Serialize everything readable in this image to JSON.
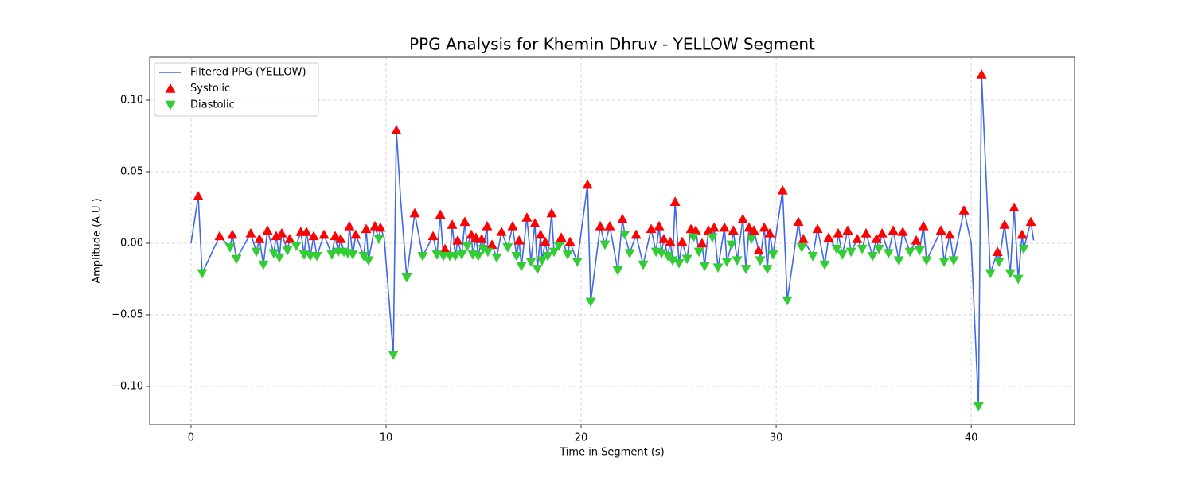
{
  "chart_data": {
    "type": "line",
    "title": "PPG Analysis for Khemin Dhruv - YELLOW Segment",
    "xlabel": "Time in Segment (s)",
    "ylabel": "Amplitude (A.U.)",
    "xlim": [
      -2.12,
      45.3
    ],
    "ylim": [
      -0.1267,
      0.13
    ],
    "xticks": [
      0,
      10,
      20,
      30,
      40
    ],
    "yticks": [
      {
        "value": -0.1,
        "label": "−0.10"
      },
      {
        "value": -0.05,
        "label": "−0.05"
      },
      {
        "value": 0,
        "label": "0.00"
      },
      {
        "value": 0.05,
        "label": "0.05"
      },
      {
        "value": 0.1,
        "label": "0.10"
      }
    ],
    "grid": true,
    "legend": "upper left",
    "series": [
      {
        "name": "Filtered PPG (YELLOW)",
        "color": "#4169e1",
        "marker": "none",
        "x": [
          0,
          0.37,
          0.57,
          1.47,
          2.0,
          2.12,
          2.33,
          3.06,
          3.35,
          3.51,
          3.71,
          3.92,
          4.24,
          4.37,
          4.53,
          4.65,
          4.94,
          5.06,
          5.39,
          5.63,
          5.8,
          5.92,
          6.12,
          6.29,
          6.45,
          6.82,
          7.22,
          7.39,
          7.55,
          7.67,
          7.84,
          8.04,
          8.12,
          8.29,
          8.45,
          8.86,
          8.98,
          9.1,
          9.43,
          9.63,
          9.71,
          9.9,
          10.1,
          10.37,
          10.53,
          10.75,
          11.06,
          11.47,
          11.88,
          12.41,
          12.61,
          12.78,
          12.94,
          13.02,
          13.27,
          13.39,
          13.55,
          13.67,
          13.88,
          14.04,
          14.16,
          14.37,
          14.45,
          14.61,
          14.73,
          14.9,
          14.98,
          15.18,
          15.22,
          15.43,
          15.67,
          15.92,
          16.24,
          16.49,
          16.69,
          16.82,
          16.94,
          17.22,
          17.43,
          17.63,
          17.76,
          17.92,
          18.0,
          18.16,
          18.29,
          18.49,
          18.61,
          18.86,
          18.98,
          19.31,
          19.43,
          19.8,
          20.33,
          20.49,
          20.98,
          21.22,
          21.47,
          21.88,
          22.12,
          22.24,
          22.49,
          22.82,
          23.18,
          23.59,
          23.84,
          24.0,
          24.12,
          24.24,
          24.45,
          24.57,
          24.69,
          24.82,
          25.02,
          25.18,
          25.43,
          25.63,
          25.76,
          25.88,
          26.04,
          26.2,
          26.33,
          26.53,
          26.73,
          26.82,
          27.02,
          27.35,
          27.47,
          27.71,
          27.8,
          28.0,
          28.29,
          28.45,
          28.61,
          28.73,
          28.86,
          29.1,
          29.18,
          29.39,
          29.55,
          29.67,
          29.84,
          30.33,
          30.57,
          31.14,
          31.31,
          31.39,
          31.88,
          32.12,
          32.49,
          32.69,
          33.1,
          33.18,
          33.39,
          33.67,
          33.84,
          34.16,
          34.41,
          34.61,
          34.94,
          35.14,
          35.27,
          35.43,
          35.76,
          36.0,
          36.29,
          36.49,
          36.86,
          37.18,
          37.35,
          37.55,
          37.71,
          38.45,
          38.61,
          38.9,
          39.1,
          39.63,
          40.0,
          40.37,
          40.53,
          40.98,
          41.35,
          41.43,
          41.71,
          42.0,
          42.2,
          42.41,
          42.61,
          42.69,
          43.06,
          43.2
        ],
        "values": [
          0,
          0.033,
          -0.021,
          0.005,
          -0.003,
          0.006,
          -0.011,
          0.007,
          -0.006,
          0.003,
          -0.015,
          0.009,
          -0.007,
          0.005,
          -0.01,
          0.007,
          -0.005,
          0.003,
          -0.002,
          0.008,
          -0.008,
          0.008,
          -0.009,
          0.005,
          -0.009,
          0.006,
          -0.008,
          0.005,
          -0.006,
          0.003,
          -0.006,
          -0.007,
          0.012,
          -0.008,
          0.006,
          -0.009,
          0.01,
          -0.012,
          0.012,
          0.003,
          0.011,
          0.004,
          -0.03,
          -0.078,
          0.079,
          0.03,
          -0.024,
          0.021,
          -0.009,
          0.005,
          -0.008,
          0.02,
          -0.009,
          -0.004,
          -0.009,
          0.013,
          -0.009,
          0.002,
          -0.008,
          0.015,
          -0.002,
          0.006,
          -0.008,
          0.004,
          -0.009,
          0.003,
          -0.004,
          0.012,
          -0.006,
          -0.001,
          -0.01,
          0.008,
          -0.003,
          0.012,
          -0.009,
          0.002,
          -0.016,
          0.018,
          -0.013,
          0.014,
          -0.018,
          0.006,
          -0.012,
          0.001,
          -0.009,
          0.021,
          -0.006,
          -0.002,
          0.004,
          -0.008,
          0.001,
          -0.013,
          0.041,
          -0.041,
          0.012,
          -0.001,
          0.012,
          -0.019,
          0.017,
          0.006,
          -0.007,
          0.006,
          -0.015,
          0.01,
          -0.006,
          0.012,
          -0.007,
          0.003,
          -0.009,
          0.001,
          -0.012,
          0.029,
          -0.014,
          0.001,
          -0.011,
          0.01,
          0.004,
          0.009,
          -0.006,
          0,
          -0.016,
          0.009,
          0.004,
          0.011,
          -0.017,
          0.011,
          -0.013,
          -0.001,
          0.009,
          -0.012,
          0.017,
          -0.018,
          0.011,
          0.003,
          0.009,
          -0.005,
          -0.012,
          0.011,
          -0.018,
          0.007,
          -0.008,
          0.037,
          -0.04,
          0.015,
          -0.003,
          0.003,
          -0.009,
          0.01,
          -0.015,
          0.004,
          -0.004,
          0.007,
          -0.008,
          0.009,
          -0.006,
          0.003,
          -0.004,
          0.007,
          -0.009,
          0.003,
          -0.004,
          0.007,
          -0.007,
          0.009,
          -0.012,
          0.008,
          -0.006,
          0.002,
          -0.005,
          0.012,
          -0.012,
          0.009,
          -0.013,
          0.006,
          -0.012,
          0.023,
          0,
          -0.114,
          0.118,
          -0.021,
          -0.006,
          -0.013,
          0.013,
          -0.021,
          0.025,
          -0.025,
          0.006,
          -0.004,
          0.015,
          0.002
        ]
      },
      {
        "name": "Systolic",
        "color": "#ff0000",
        "marker": "^",
        "x": [
          0.37,
          1.47,
          2.12,
          3.06,
          3.51,
          3.92,
          4.37,
          4.65,
          5.06,
          5.63,
          5.92,
          6.29,
          6.82,
          7.39,
          7.67,
          8.12,
          8.45,
          8.98,
          9.43,
          9.71,
          10.53,
          11.47,
          12.41,
          12.78,
          13.02,
          13.39,
          13.67,
          14.04,
          14.37,
          14.61,
          14.9,
          15.18,
          15.43,
          15.92,
          16.49,
          16.82,
          17.22,
          17.63,
          17.92,
          18.16,
          18.49,
          18.98,
          19.43,
          20.33,
          20.98,
          21.47,
          22.12,
          22.82,
          23.59,
          24.0,
          24.24,
          24.57,
          24.82,
          25.18,
          25.63,
          25.88,
          26.2,
          26.53,
          26.82,
          27.35,
          27.8,
          28.29,
          28.61,
          28.86,
          29.1,
          29.39,
          29.67,
          30.33,
          31.14,
          31.39,
          32.12,
          32.69,
          33.18,
          33.67,
          34.16,
          34.61,
          35.14,
          35.43,
          36.0,
          36.49,
          37.18,
          37.55,
          38.45,
          38.9,
          39.63,
          40.53,
          41.35,
          41.71,
          42.2,
          42.61,
          43.06
        ],
        "values": [
          0.033,
          0.005,
          0.006,
          0.007,
          0.003,
          0.009,
          0.005,
          0.007,
          0.003,
          0.008,
          0.008,
          0.005,
          0.006,
          0.005,
          0.003,
          0.012,
          0.006,
          0.01,
          0.012,
          0.011,
          0.079,
          0.021,
          0.005,
          0.02,
          -0.004,
          0.013,
          0.002,
          0.015,
          0.006,
          0.004,
          0.003,
          0.012,
          -0.001,
          0.008,
          0.012,
          0.002,
          0.018,
          0.014,
          0.006,
          0.001,
          0.021,
          0.004,
          0.001,
          0.041,
          0.012,
          0.012,
          0.017,
          0.006,
          0.01,
          0.012,
          0.003,
          0.001,
          0.029,
          0.001,
          0.01,
          0.009,
          0,
          0.009,
          0.011,
          0.011,
          0.009,
          0.017,
          0.011,
          0.009,
          -0.005,
          0.011,
          0.007,
          0.037,
          0.015,
          0.003,
          0.01,
          0.004,
          0.007,
          0.009,
          0.003,
          0.007,
          0.003,
          0.007,
          0.009,
          0.008,
          0.002,
          0.012,
          0.009,
          0.006,
          0.023,
          0.118,
          -0.006,
          0.013,
          0.025,
          0.006,
          0.015
        ]
      },
      {
        "name": "Diastolic",
        "color": "#32cd32",
        "marker": "v",
        "x": [
          0.57,
          2.0,
          2.33,
          3.35,
          3.71,
          4.24,
          4.53,
          4.94,
          5.39,
          5.8,
          6.12,
          6.45,
          7.22,
          7.55,
          7.84,
          8.04,
          8.29,
          8.86,
          9.1,
          9.63,
          10.37,
          11.06,
          11.88,
          12.61,
          12.94,
          13.27,
          13.55,
          13.88,
          14.16,
          14.45,
          14.73,
          14.98,
          15.22,
          15.67,
          16.24,
          16.69,
          16.94,
          17.43,
          17.76,
          18.0,
          18.29,
          18.61,
          18.86,
          19.31,
          19.8,
          20.49,
          21.22,
          21.88,
          22.24,
          22.49,
          23.18,
          23.84,
          24.12,
          24.45,
          24.69,
          25.02,
          25.43,
          25.76,
          26.04,
          26.33,
          26.73,
          27.02,
          27.47,
          27.71,
          28.0,
          28.45,
          28.73,
          29.18,
          29.55,
          29.84,
          30.57,
          31.31,
          31.88,
          32.49,
          33.1,
          33.39,
          33.84,
          34.41,
          34.94,
          35.27,
          35.76,
          36.29,
          36.86,
          37.35,
          37.71,
          38.61,
          39.1,
          40.37,
          40.98,
          41.43,
          42.0,
          42.41,
          42.69
        ],
        "values": [
          -0.021,
          -0.003,
          -0.011,
          -0.006,
          -0.015,
          -0.007,
          -0.01,
          -0.005,
          -0.002,
          -0.008,
          -0.009,
          -0.009,
          -0.008,
          -0.006,
          -0.006,
          -0.007,
          -0.008,
          -0.009,
          -0.012,
          0.003,
          -0.078,
          -0.024,
          -0.009,
          -0.008,
          -0.009,
          -0.009,
          -0.009,
          -0.008,
          -0.002,
          -0.008,
          -0.009,
          -0.004,
          -0.006,
          -0.01,
          -0.003,
          -0.009,
          -0.016,
          -0.013,
          -0.018,
          -0.012,
          -0.009,
          -0.006,
          -0.002,
          -0.008,
          -0.013,
          -0.041,
          -0.001,
          -0.019,
          0.006,
          -0.007,
          -0.015,
          -0.006,
          -0.007,
          -0.009,
          -0.012,
          -0.014,
          -0.011,
          0.004,
          -0.006,
          -0.016,
          0.004,
          -0.017,
          -0.013,
          -0.001,
          -0.012,
          -0.018,
          0.003,
          -0.012,
          -0.018,
          -0.008,
          -0.04,
          -0.003,
          -0.009,
          -0.015,
          -0.004,
          -0.008,
          -0.006,
          -0.004,
          -0.009,
          -0.004,
          -0.007,
          -0.012,
          -0.006,
          -0.005,
          -0.012,
          -0.013,
          -0.012,
          -0.114,
          -0.021,
          -0.013,
          -0.021,
          -0.025,
          -0.004
        ]
      }
    ]
  }
}
